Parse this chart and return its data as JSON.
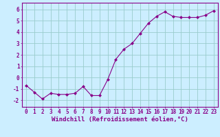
{
  "x": [
    0,
    1,
    2,
    3,
    4,
    5,
    6,
    7,
    8,
    9,
    10,
    11,
    12,
    13,
    14,
    15,
    16,
    17,
    18,
    19,
    20,
    21,
    22,
    23
  ],
  "y": [
    -0.7,
    -1.3,
    -1.9,
    -1.4,
    -1.5,
    -1.5,
    -1.4,
    -0.8,
    -1.6,
    -1.6,
    -0.2,
    1.6,
    2.5,
    3.0,
    3.9,
    4.8,
    5.4,
    5.8,
    5.4,
    5.3,
    5.3,
    5.3,
    5.5,
    5.9
  ],
  "line_color": "#880088",
  "marker": "D",
  "marker_size": 2,
  "bg_color": "#cceeff",
  "grid_color": "#99cccc",
  "xlabel": "Windchill (Refroidissement éolien,°C)",
  "xlim": [
    -0.5,
    23.5
  ],
  "ylim": [
    -2.6,
    6.6
  ],
  "yticks": [
    -2,
    -1,
    0,
    1,
    2,
    3,
    4,
    5,
    6
  ],
  "xticks": [
    0,
    1,
    2,
    3,
    4,
    5,
    6,
    7,
    8,
    9,
    10,
    11,
    12,
    13,
    14,
    15,
    16,
    17,
    18,
    19,
    20,
    21,
    22,
    23
  ],
  "tick_label_fontsize": 5.5,
  "xlabel_fontsize": 6.5
}
